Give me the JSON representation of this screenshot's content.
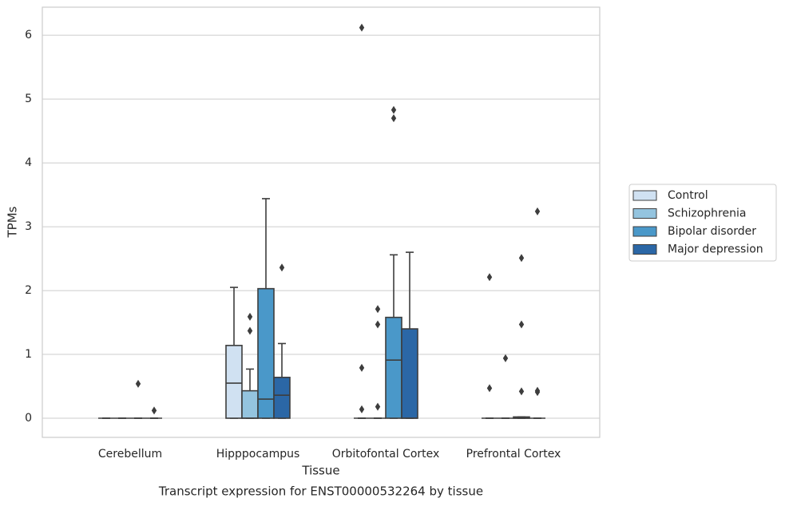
{
  "chart_data": {
    "type": "box",
    "title": "Transcript expression for ENST00000532264 by tissue",
    "xlabel": "Tissue",
    "ylabel": "TPMs",
    "categories": [
      "Cerebellum",
      "Hipppocampus",
      "Orbitofontal Cortex",
      "Prefrontal Cortex"
    ],
    "ylim": [
      -0.3,
      6.44
    ],
    "yticks": [
      0,
      1,
      2,
      3,
      4,
      5,
      6
    ],
    "grid": true,
    "legend": "right",
    "series": [
      {
        "name": "Control",
        "color": "#d0e1f2",
        "values": [
          {
            "whislo": 0,
            "q1": 0,
            "median": 0,
            "q3": 0,
            "whishi": 0,
            "fliers": []
          },
          {
            "whislo": 0,
            "q1": 0,
            "median": 0.55,
            "q3": 1.14,
            "whishi": 2.05,
            "fliers": []
          },
          {
            "whislo": 0,
            "q1": 0,
            "median": 0,
            "q3": 0,
            "whishi": 0,
            "fliers": [
              0.14,
              0.79,
              6.12
            ]
          },
          {
            "whislo": 0,
            "q1": 0,
            "median": 0,
            "q3": 0,
            "whishi": 0,
            "fliers": [
              0.47,
              2.21
            ]
          }
        ]
      },
      {
        "name": "Schizophrenia",
        "color": "#94c4df",
        "values": [
          {
            "whislo": 0,
            "q1": 0,
            "median": 0,
            "q3": 0,
            "whishi": 0,
            "fliers": []
          },
          {
            "whislo": 0,
            "q1": 0,
            "median": 0,
            "q3": 0.43,
            "whishi": 0.77,
            "fliers": [
              1.37,
              1.59
            ]
          },
          {
            "whislo": 0,
            "q1": 0,
            "median": 0,
            "q3": 0,
            "whishi": 0,
            "fliers": [
              0.18,
              1.47,
              1.71
            ]
          },
          {
            "whislo": 0,
            "q1": 0,
            "median": 0,
            "q3": 0,
            "whishi": 0,
            "fliers": [
              0.94
            ]
          }
        ]
      },
      {
        "name": "Bipolar disorder",
        "color": "#4a98c9",
        "values": [
          {
            "whislo": 0,
            "q1": 0,
            "median": 0,
            "q3": 0,
            "whishi": 0,
            "fliers": [
              0.54
            ]
          },
          {
            "whislo": 0,
            "q1": 0,
            "median": 0.3,
            "q3": 2.03,
            "whishi": 3.44,
            "fliers": []
          },
          {
            "whislo": 0,
            "q1": 0,
            "median": 0.91,
            "q3": 1.58,
            "whishi": 2.56,
            "fliers": [
              4.7,
              4.83
            ]
          },
          {
            "whislo": 0,
            "q1": 0,
            "median": 0,
            "q3": 0.02,
            "whishi": 0.02,
            "fliers": [
              0.42,
              1.47,
              2.51
            ]
          }
        ]
      },
      {
        "name": "Major depression",
        "color": "#2b67a6",
        "values": [
          {
            "whislo": 0,
            "q1": 0,
            "median": 0,
            "q3": 0,
            "whishi": 0,
            "fliers": [
              0.12
            ]
          },
          {
            "whislo": 0,
            "q1": 0,
            "median": 0.36,
            "q3": 0.64,
            "whishi": 1.17,
            "fliers": [
              2.36
            ]
          },
          {
            "whislo": 0,
            "q1": 0,
            "median": 0,
            "q3": 1.4,
            "whishi": 2.6,
            "fliers": []
          },
          {
            "whislo": 0,
            "q1": 0,
            "median": 0,
            "q3": 0,
            "whishi": 0,
            "fliers": [
              0.41,
              0.43,
              3.24
            ]
          }
        ]
      }
    ]
  }
}
